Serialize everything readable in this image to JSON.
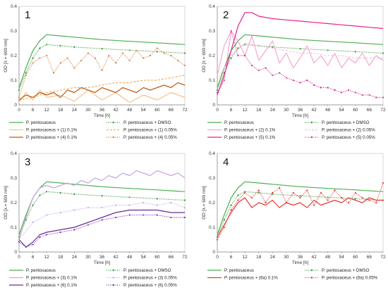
{
  "figure": {
    "x_label": "Time [h]",
    "y_label": "OD [λ = 600 nm]",
    "x_ticks": [
      "0",
      "6",
      "12",
      "18",
      "24",
      "30",
      "36",
      "42",
      "48",
      "54",
      "60",
      "66",
      "72"
    ],
    "y_ticks": [
      "0",
      "0.1",
      "0.2",
      "0.3",
      "0.4"
    ]
  },
  "chart_data": [
    {
      "type": "line",
      "panel": "1",
      "xlim": [
        0,
        72
      ],
      "ylim": [
        0,
        0.4
      ],
      "series": [
        {
          "name": "P. pentosaceus",
          "color": "#4caf50",
          "dash": "solid",
          "marker": false,
          "x": [
            0,
            3,
            6,
            9,
            12,
            18,
            24,
            36,
            48,
            60,
            72
          ],
          "y": [
            0.07,
            0.15,
            0.22,
            0.26,
            0.285,
            0.28,
            0.275,
            0.265,
            0.258,
            0.252,
            0.245
          ]
        },
        {
          "name": "P. pentosaceus + DMSO",
          "color": "#3a9a3a",
          "dash": "dot",
          "marker": true,
          "x": [
            0,
            3,
            6,
            9,
            12,
            18,
            24,
            36,
            48,
            60,
            72
          ],
          "y": [
            0.06,
            0.13,
            0.19,
            0.23,
            0.245,
            0.24,
            0.235,
            0.228,
            0.222,
            0.216,
            0.21
          ]
        },
        {
          "name": "P. pentosaceus + (1) 0.1%",
          "color": "#f4c38a",
          "dash": "solid",
          "marker": false,
          "x": [
            0,
            3,
            6,
            9,
            12,
            18,
            24,
            30,
            36,
            42,
            48,
            54,
            60,
            66,
            72
          ],
          "y": [
            0.01,
            0.05,
            0.02,
            0.06,
            0.03,
            0.04,
            0.015,
            0.06,
            0.02,
            0.05,
            0.01,
            0.04,
            0.02,
            0.05,
            0.03
          ]
        },
        {
          "name": "P. pentosaceus + (1) 0.05%",
          "color": "#f0b060",
          "dash": "dash",
          "marker": false,
          "x": [
            0,
            6,
            12,
            18,
            24,
            30,
            36,
            42,
            48,
            54,
            60,
            66,
            72
          ],
          "y": [
            0.02,
            0.03,
            0.05,
            0.06,
            0.07,
            0.07,
            0.08,
            0.09,
            0.09,
            0.1,
            0.1,
            0.11,
            0.12
          ]
        },
        {
          "name": "P. pentosaceus + (4) 0.1%",
          "color": "#c05a12",
          "dash": "solid",
          "marker": false,
          "x": [
            0,
            3,
            6,
            9,
            12,
            15,
            18,
            21,
            24,
            27,
            30,
            33,
            36,
            39,
            42,
            45,
            48,
            51,
            54,
            57,
            60,
            63,
            66,
            69,
            72
          ],
          "y": [
            0.02,
            0.04,
            0.03,
            0.05,
            0.04,
            0.05,
            0.03,
            0.06,
            0.05,
            0.07,
            0.06,
            0.05,
            0.07,
            0.06,
            0.05,
            0.07,
            0.06,
            0.05,
            0.07,
            0.06,
            0.07,
            0.08,
            0.07,
            0.09,
            0.08
          ]
        },
        {
          "name": "P. pentosaceus + (4) 0.05%",
          "color": "#d2884a",
          "dash": "dot",
          "marker": true,
          "x": [
            0,
            3,
            6,
            9,
            12,
            15,
            18,
            21,
            24,
            27,
            30,
            33,
            36,
            39,
            42,
            45,
            48,
            51,
            54,
            57,
            60,
            63,
            66,
            69,
            72
          ],
          "y": [
            0.03,
            0.12,
            0.17,
            0.19,
            0.2,
            0.13,
            0.17,
            0.19,
            0.15,
            0.18,
            0.21,
            0.19,
            0.14,
            0.2,
            0.17,
            0.21,
            0.18,
            0.22,
            0.19,
            0.2,
            0.23,
            0.21,
            0.2,
            0.18,
            0.16
          ]
        }
      ]
    },
    {
      "type": "line",
      "panel": "2",
      "xlim": [
        0,
        72
      ],
      "ylim": [
        0,
        0.4
      ],
      "series": [
        {
          "name": "P. pentosaceus",
          "color": "#4caf50",
          "dash": "solid",
          "marker": false,
          "x": [
            0,
            3,
            6,
            9,
            12,
            18,
            24,
            36,
            48,
            60,
            72
          ],
          "y": [
            0.07,
            0.15,
            0.22,
            0.26,
            0.285,
            0.28,
            0.275,
            0.265,
            0.258,
            0.252,
            0.245
          ]
        },
        {
          "name": "P. pentosaceus + DMSO",
          "color": "#3a9a3a",
          "dash": "dot",
          "marker": true,
          "x": [
            0,
            3,
            6,
            9,
            12,
            18,
            24,
            36,
            48,
            60,
            72
          ],
          "y": [
            0.06,
            0.13,
            0.19,
            0.23,
            0.245,
            0.24,
            0.235,
            0.228,
            0.222,
            0.216,
            0.21
          ]
        },
        {
          "name": "P. pentosaceus + (2) 0.1%",
          "color": "#f3a8d0",
          "dash": "solid",
          "marker": false,
          "x": [
            0,
            3,
            6,
            9,
            12,
            15,
            18,
            21,
            24,
            27,
            30,
            33,
            36,
            39,
            42,
            45,
            48,
            51,
            54,
            57,
            60,
            63,
            66,
            69,
            72
          ],
          "y": [
            0.12,
            0.24,
            0.3,
            0.26,
            0.2,
            0.28,
            0.18,
            0.22,
            0.26,
            0.17,
            0.21,
            0.15,
            0.19,
            0.24,
            0.17,
            0.2,
            0.16,
            0.21,
            0.15,
            0.19,
            0.17,
            0.21,
            0.16,
            0.2,
            0.18
          ]
        },
        {
          "name": "P. pentosaceus + (2) 0.05%",
          "color": "#f5c2dc",
          "dash": "dash",
          "marker": false,
          "x": [
            0,
            6,
            12,
            18,
            24,
            30,
            36,
            42,
            48,
            54,
            60,
            66,
            72
          ],
          "y": [
            0.1,
            0.2,
            0.25,
            0.24,
            0.23,
            0.22,
            0.21,
            0.21,
            0.2,
            0.2,
            0.19,
            0.19,
            0.19
          ]
        },
        {
          "name": "P. pentosaceus + (5) 0.1%",
          "color": "#e91e8c",
          "dash": "solid",
          "marker": false,
          "x": [
            0,
            3,
            6,
            9,
            12,
            15,
            18,
            24,
            30,
            36,
            42,
            48,
            54,
            60,
            66,
            72
          ],
          "y": [
            0.04,
            0.12,
            0.22,
            0.32,
            0.375,
            0.375,
            0.36,
            0.35,
            0.345,
            0.34,
            0.335,
            0.33,
            0.325,
            0.32,
            0.315,
            0.31
          ]
        },
        {
          "name": "P. pentosaceus + (5) 0.05%",
          "color": "#d6338e",
          "dash": "dot",
          "marker": true,
          "x": [
            0,
            3,
            6,
            9,
            12,
            15,
            18,
            21,
            24,
            27,
            30,
            33,
            36,
            39,
            42,
            45,
            48,
            51,
            54,
            57,
            60,
            63,
            66,
            69,
            72
          ],
          "y": [
            0.05,
            0.1,
            0.3,
            0.2,
            0.2,
            0.16,
            0.14,
            0.15,
            0.12,
            0.13,
            0.11,
            0.1,
            0.09,
            0.1,
            0.08,
            0.07,
            0.07,
            0.06,
            0.05,
            0.06,
            0.05,
            0.04,
            0.04,
            0.03,
            0.03
          ]
        }
      ]
    },
    {
      "type": "line",
      "panel": "3",
      "xlim": [
        0,
        72
      ],
      "ylim": [
        0,
        0.4
      ],
      "series": [
        {
          "name": "P. pentosaceus",
          "color": "#4caf50",
          "dash": "solid",
          "marker": false,
          "x": [
            0,
            3,
            6,
            9,
            12,
            18,
            24,
            36,
            48,
            60,
            72
          ],
          "y": [
            0.07,
            0.15,
            0.22,
            0.26,
            0.285,
            0.28,
            0.275,
            0.265,
            0.258,
            0.252,
            0.245
          ]
        },
        {
          "name": "P. pentosaceus + DMSO",
          "color": "#3a9a3a",
          "dash": "dot",
          "marker": true,
          "x": [
            0,
            3,
            6,
            9,
            12,
            18,
            24,
            36,
            48,
            60,
            72
          ],
          "y": [
            0.06,
            0.13,
            0.19,
            0.23,
            0.245,
            0.24,
            0.235,
            0.228,
            0.222,
            0.216,
            0.21
          ]
        },
        {
          "name": "P. pentosaceus + (3) 0.1%",
          "color": "#c9a6e3",
          "dash": "solid",
          "marker": false,
          "x": [
            0,
            3,
            6,
            9,
            12,
            15,
            18,
            21,
            24,
            27,
            30,
            33,
            36,
            39,
            42,
            45,
            48,
            51,
            54,
            57,
            60,
            63,
            66,
            69,
            72
          ],
          "y": [
            0.05,
            0.14,
            0.22,
            0.26,
            0.27,
            0.26,
            0.27,
            0.28,
            0.27,
            0.29,
            0.28,
            0.3,
            0.29,
            0.31,
            0.3,
            0.32,
            0.31,
            0.33,
            0.32,
            0.31,
            0.33,
            0.32,
            0.31,
            0.32,
            0.3
          ]
        },
        {
          "name": "P. pentosaceus + (3) 0.05%",
          "color": "#c9a6e3",
          "dash": "dot",
          "marker": true,
          "x": [
            0,
            6,
            12,
            18,
            24,
            30,
            36,
            42,
            48,
            54,
            60,
            66,
            72
          ],
          "y": [
            0.05,
            0.12,
            0.15,
            0.16,
            0.17,
            0.18,
            0.18,
            0.19,
            0.19,
            0.2,
            0.19,
            0.2,
            0.18
          ]
        },
        {
          "name": "P. pentosaceus + (6) 0.1%",
          "color": "#6a2c91",
          "dash": "solid",
          "marker": false,
          "x": [
            0,
            3,
            6,
            9,
            12,
            18,
            24,
            30,
            36,
            42,
            48,
            54,
            60,
            66,
            72
          ],
          "y": [
            0.05,
            0.02,
            0.04,
            0.07,
            0.08,
            0.09,
            0.1,
            0.12,
            0.14,
            0.16,
            0.17,
            0.17,
            0.17,
            0.16,
            0.16
          ]
        },
        {
          "name": "P. pentosaceus + (6) 0.05%",
          "color": "#7b3fa6",
          "dash": "dot",
          "marker": true,
          "x": [
            0,
            3,
            6,
            9,
            12,
            18,
            24,
            30,
            36,
            42,
            48,
            54,
            60,
            66,
            72
          ],
          "y": [
            0.04,
            0.02,
            0.03,
            0.06,
            0.07,
            0.08,
            0.09,
            0.11,
            0.13,
            0.14,
            0.15,
            0.15,
            0.15,
            0.14,
            0.14
          ]
        }
      ]
    },
    {
      "type": "line",
      "panel": "4",
      "xlim": [
        0,
        72
      ],
      "ylim": [
        0,
        0.4
      ],
      "series": [
        {
          "name": "P. pentosaceus",
          "color": "#4caf50",
          "dash": "solid",
          "marker": false,
          "x": [
            0,
            3,
            6,
            9,
            12,
            18,
            24,
            36,
            48,
            60,
            72
          ],
          "y": [
            0.07,
            0.15,
            0.22,
            0.26,
            0.285,
            0.28,
            0.275,
            0.265,
            0.258,
            0.252,
            0.245
          ]
        },
        {
          "name": "P. pentosaceus + DMSO",
          "color": "#3a9a3a",
          "dash": "dot",
          "marker": true,
          "x": [
            0,
            3,
            6,
            9,
            12,
            18,
            24,
            36,
            48,
            60,
            72
          ],
          "y": [
            0.06,
            0.13,
            0.19,
            0.23,
            0.245,
            0.24,
            0.235,
            0.228,
            0.222,
            0.216,
            0.21
          ]
        },
        {
          "name": "P. pentosaceus + (6a) 0.1%",
          "color": "#e53935",
          "dash": "solid",
          "marker": false,
          "x": [
            0,
            3,
            6,
            9,
            12,
            15,
            18,
            21,
            24,
            27,
            30,
            33,
            36,
            39,
            42,
            45,
            48,
            51,
            54,
            57,
            60,
            63,
            66,
            69,
            72
          ],
          "y": [
            0.06,
            0.11,
            0.16,
            0.2,
            0.22,
            0.18,
            0.2,
            0.19,
            0.21,
            0.18,
            0.2,
            0.19,
            0.2,
            0.18,
            0.21,
            0.19,
            0.2,
            0.21,
            0.2,
            0.22,
            0.21,
            0.2,
            0.22,
            0.21,
            0.21
          ]
        },
        {
          "name": "P. pentosaceus + (6a) 0.05%",
          "color": "#e53935",
          "dash": "dot",
          "marker": true,
          "x": [
            0,
            3,
            6,
            9,
            12,
            15,
            18,
            21,
            24,
            27,
            30,
            33,
            36,
            39,
            42,
            45,
            48,
            51,
            54,
            57,
            60,
            63,
            66,
            69,
            72
          ],
          "y": [
            0.05,
            0.1,
            0.17,
            0.21,
            0.24,
            0.22,
            0.25,
            0.2,
            0.24,
            0.26,
            0.2,
            0.24,
            0.22,
            0.25,
            0.19,
            0.24,
            0.21,
            0.25,
            0.22,
            0.2,
            0.24,
            0.22,
            0.21,
            0.2,
            0.28
          ]
        }
      ]
    }
  ]
}
